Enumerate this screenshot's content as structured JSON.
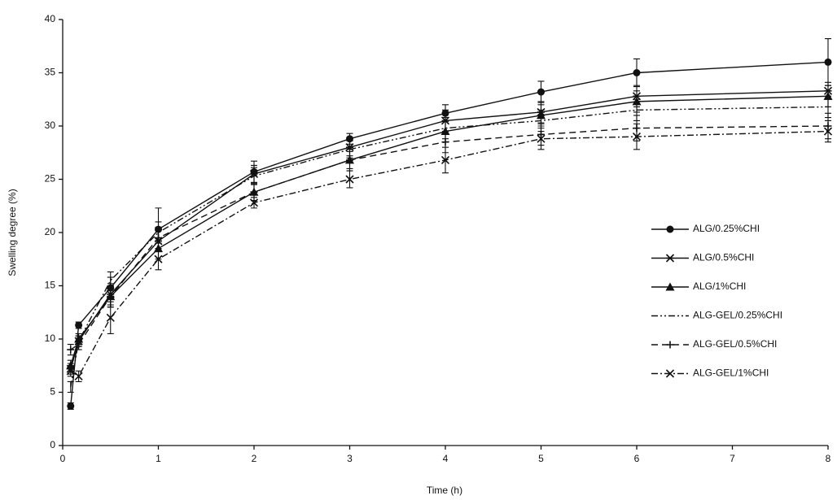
{
  "chart_data": {
    "type": "line",
    "xlabel": "Time (h)",
    "ylabel": "Swelling degree (%)",
    "x": [
      0.083,
      0.167,
      0.5,
      1,
      2,
      3,
      4,
      5,
      6,
      8
    ],
    "xlim": [
      0,
      8
    ],
    "xticks": [
      0,
      1,
      2,
      3,
      4,
      5,
      6,
      7,
      8
    ],
    "ylim": [
      0,
      40
    ],
    "yticks": [
      0,
      5,
      10,
      15,
      20,
      25,
      30,
      35,
      40
    ],
    "legend": "right",
    "series": [
      {
        "name": "ALG/0.25%CHI",
        "color": "#111111",
        "dash": "none",
        "marker": "circle",
        "values": [
          3.7,
          11.3,
          14.8,
          20.3,
          25.7,
          28.8,
          31.2,
          33.2,
          35.0,
          36.0
        ],
        "errors": [
          0.3,
          0.3,
          1.0,
          2.0,
          1.0,
          0.5,
          0.8,
          1.0,
          1.3,
          2.2
        ]
      },
      {
        "name": "ALG/0.5%CHI",
        "color": "#111111",
        "dash": "none",
        "marker": "star",
        "values": [
          7.2,
          9.8,
          14.2,
          19.2,
          25.5,
          28.0,
          30.5,
          31.3,
          32.8,
          33.3
        ],
        "errors": [
          0.5,
          0.5,
          1.0,
          1.0,
          0.8,
          0.8,
          1.0,
          1.0,
          1.0,
          0.8
        ]
      },
      {
        "name": "ALG/1%CHI",
        "color": "#111111",
        "dash": "none",
        "marker": "triangle",
        "values": [
          7.5,
          10.0,
          14.0,
          18.5,
          23.8,
          26.8,
          29.5,
          31.0,
          32.3,
          32.8
        ],
        "errors": [
          0.5,
          0.5,
          1.0,
          1.0,
          0.8,
          1.0,
          1.0,
          1.0,
          1.0,
          1.0
        ]
      },
      {
        "name": "ALG-GEL/0.25%CHI",
        "color": "#111111",
        "dash": "8 3 2 3 2 3",
        "marker": "none",
        "values": [
          5.5,
          9.8,
          15.5,
          20.0,
          25.3,
          27.8,
          29.8,
          30.5,
          31.5,
          31.8
        ],
        "errors": [
          0.5,
          0.5,
          0.8,
          1.0,
          0.8,
          0.8,
          1.0,
          1.0,
          1.0,
          1.0
        ]
      },
      {
        "name": "ALG-GEL/0.5%CHI",
        "color": "#111111",
        "dash": "8 5",
        "marker": "plus",
        "values": [
          9.0,
          9.5,
          14.0,
          19.5,
          23.8,
          26.8,
          28.5,
          29.2,
          29.8,
          30.0
        ],
        "errors": [
          0.5,
          0.5,
          1.0,
          1.0,
          0.8,
          0.8,
          1.0,
          1.0,
          1.2,
          1.2
        ]
      },
      {
        "name": "ALG-GEL/1%CHI",
        "color": "#111111",
        "dash": "8 3 2 3",
        "marker": "cross",
        "values": [
          7.0,
          6.5,
          12.0,
          17.5,
          22.8,
          25.0,
          26.8,
          28.8,
          29.0,
          29.5
        ],
        "errors": [
          0.5,
          0.5,
          1.5,
          1.0,
          0.5,
          0.8,
          1.2,
          1.0,
          1.2,
          1.0
        ]
      }
    ]
  }
}
